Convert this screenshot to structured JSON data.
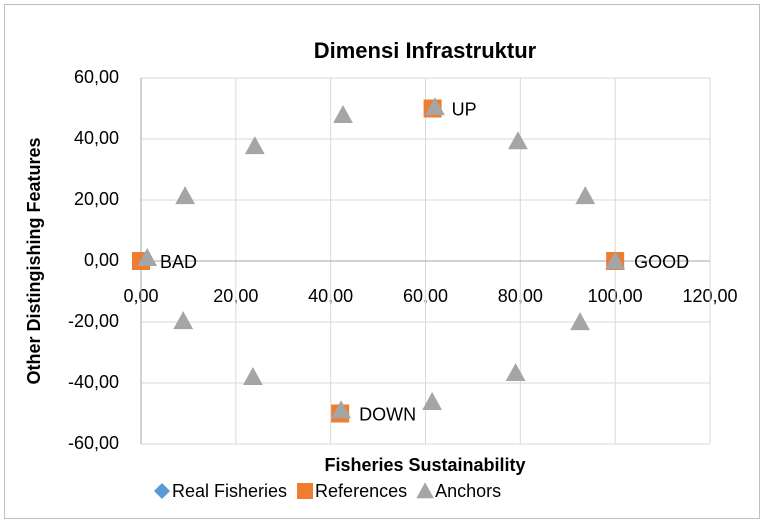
{
  "chart_data": {
    "type": "scatter",
    "title": "Dimensi Infrastruktur",
    "xlabel": "Fisheries Sustainability",
    "ylabel": "Other Distingishing Features",
    "xlim": [
      0,
      120
    ],
    "ylim": [
      -60,
      60
    ],
    "xticks": [
      {
        "value": 0,
        "label": "0,00"
      },
      {
        "value": 20,
        "label": "20,00"
      },
      {
        "value": 40,
        "label": "40,00"
      },
      {
        "value": 60,
        "label": "60,00"
      },
      {
        "value": 80,
        "label": "80,00"
      },
      {
        "value": 100,
        "label": "100,00"
      },
      {
        "value": 120,
        "label": "120,00"
      }
    ],
    "yticks": [
      {
        "value": -60,
        "label": "-60,00"
      },
      {
        "value": -40,
        "label": "-40,00"
      },
      {
        "value": -20,
        "label": "-20,00"
      },
      {
        "value": 0,
        "label": "0,00"
      },
      {
        "value": 20,
        "label": "20,00"
      },
      {
        "value": 40,
        "label": "40,00"
      },
      {
        "value": 60,
        "label": "60,00"
      }
    ],
    "grid": true,
    "series": [
      {
        "name": "Real Fisheries",
        "color": "#5b9bd5",
        "marker": "diamond",
        "x": [],
        "values": []
      },
      {
        "name": "References",
        "color": "#ed7d31",
        "marker": "square",
        "x": [
          0,
          100,
          61.5,
          42
        ],
        "values": [
          0,
          0,
          50,
          -50
        ],
        "labels": [
          "BAD",
          "GOOD",
          "UP",
          "DOWN"
        ]
      },
      {
        "name": "Anchors",
        "color": "#a5a5a5",
        "marker": "triangle",
        "x": [
          1.3,
          9.3,
          24,
          42.6,
          62,
          79.5,
          93.7,
          100,
          92.6,
          79,
          61.4,
          42.2,
          23.6,
          8.9
        ],
        "values": [
          1,
          21.3,
          37.7,
          47.9,
          50.5,
          39.3,
          21.3,
          0,
          -20,
          -36.7,
          -46.2,
          -48.9,
          -38,
          -19.7
        ]
      }
    ]
  }
}
